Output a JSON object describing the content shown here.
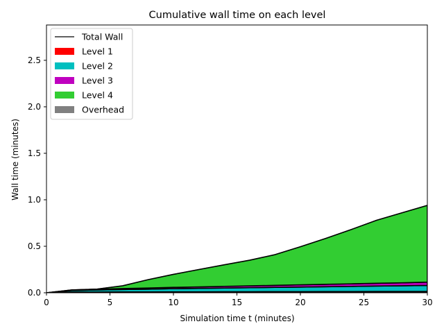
{
  "chart_data": {
    "type": "area",
    "stacked": true,
    "title": "Cumulative wall time on each level",
    "xlabel": "Simulation time t (minutes)",
    "ylabel": "Wall time (minutes)",
    "xlim": [
      0,
      30
    ],
    "ylim": [
      0,
      2.88
    ],
    "xticks": [
      0,
      5,
      10,
      15,
      20,
      25,
      30
    ],
    "yticks": [
      0.0,
      0.5,
      1.0,
      1.5,
      2.0,
      2.5
    ],
    "xtick_labels": [
      "0",
      "5",
      "10",
      "15",
      "20",
      "25",
      "30"
    ],
    "ytick_labels": [
      "0.0",
      "0.5",
      "1.0",
      "1.5",
      "2.0",
      "2.5"
    ],
    "grid": false,
    "legend_position": "top-left",
    "x": [
      0,
      2,
      4,
      6,
      8,
      10,
      12,
      14,
      16,
      18,
      20,
      22,
      24,
      26,
      28,
      30
    ],
    "series": [
      {
        "name": "Overhead",
        "color": "#808080",
        "values": [
          0,
          0.005,
          0.005,
          0.006,
          0.006,
          0.007,
          0.007,
          0.008,
          0.008,
          0.009,
          0.009,
          0.01,
          0.01,
          0.011,
          0.011,
          0.012
        ]
      },
      {
        "name": "Level 1",
        "color": "#ff0000",
        "values": [
          0,
          0.003,
          0.003,
          0.003,
          0.003,
          0.003,
          0.003,
          0.003,
          0.003,
          0.003,
          0.003,
          0.003,
          0.003,
          0.003,
          0.003,
          0.003
        ]
      },
      {
        "name": "Level 2",
        "color": "#00bfbf",
        "values": [
          0,
          0.017,
          0.022,
          0.026,
          0.03,
          0.034,
          0.037,
          0.04,
          0.043,
          0.046,
          0.049,
          0.052,
          0.055,
          0.058,
          0.061,
          0.064
        ]
      },
      {
        "name": "Level 3",
        "color": "#bf00bf",
        "values": [
          0,
          0.005,
          0.008,
          0.01,
          0.012,
          0.014,
          0.016,
          0.018,
          0.02,
          0.022,
          0.024,
          0.026,
          0.028,
          0.03,
          0.032,
          0.035
        ]
      },
      {
        "name": "Level 4",
        "color": "#32cd32",
        "values": [
          0,
          0,
          0.002,
          0.03,
          0.09,
          0.14,
          0.187,
          0.232,
          0.276,
          0.33,
          0.41,
          0.494,
          0.584,
          0.678,
          0.753,
          0.826
        ]
      }
    ],
    "total_wall": {
      "name": "Total Wall",
      "color": "#000000",
      "values": [
        0,
        0.03,
        0.04,
        0.075,
        0.141,
        0.198,
        0.25,
        0.301,
        0.35,
        0.41,
        0.495,
        0.585,
        0.68,
        0.78,
        0.86,
        0.94
      ]
    },
    "legend": [
      "Total Wall",
      "Level 1",
      "Level 2",
      "Level 3",
      "Level 4",
      "Overhead"
    ]
  }
}
